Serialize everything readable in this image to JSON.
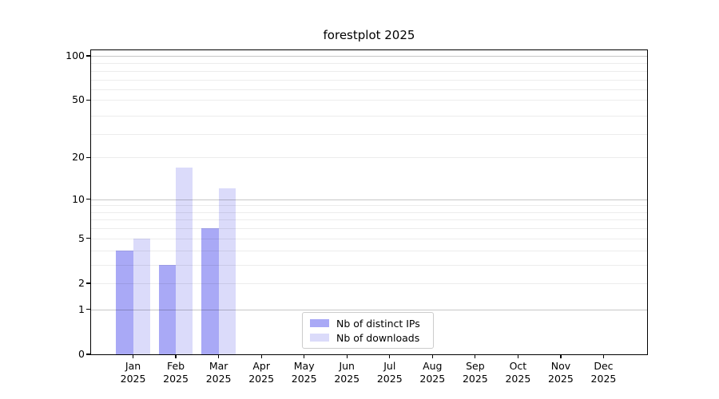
{
  "chart_data": {
    "type": "bar",
    "title": "forestplot 2025",
    "categories": [
      "Jan 2025",
      "Feb 2025",
      "Mar 2025",
      "Apr 2025",
      "May 2025",
      "Jun 2025",
      "Jul 2025",
      "Aug 2025",
      "Sep 2025",
      "Oct 2025",
      "Nov 2025",
      "Dec 2025"
    ],
    "series": [
      {
        "name": "Nb of distinct IPs",
        "color": "#a9a9f6",
        "values": [
          4,
          3,
          6,
          0,
          0,
          0,
          0,
          0,
          0,
          0,
          0,
          0
        ]
      },
      {
        "name": "Nb of downloads",
        "color": "#dbdbfa",
        "values": [
          5,
          17,
          12,
          0,
          0,
          0,
          0,
          0,
          0,
          0,
          0,
          0
        ]
      }
    ],
    "yscale": "log1p",
    "yticks": [
      0,
      1,
      2,
      5,
      10,
      20,
      50,
      100
    ],
    "ylim": [
      0,
      110
    ],
    "grid": {
      "major_values": [
        1,
        10,
        100
      ],
      "minor_values": [
        2,
        3,
        4,
        5,
        6,
        7,
        8,
        9,
        20,
        29,
        39,
        50,
        59,
        69,
        79,
        89
      ]
    },
    "legend_position": "lower center",
    "grid_on": true
  },
  "colors": {
    "axis": "#000000",
    "text": "#000000",
    "grid_major": "rgba(0,0,0,0.22)",
    "grid_minor": "rgba(0,0,0,0.075)",
    "legend_border": "#cccccc",
    "background": "#ffffff"
  }
}
